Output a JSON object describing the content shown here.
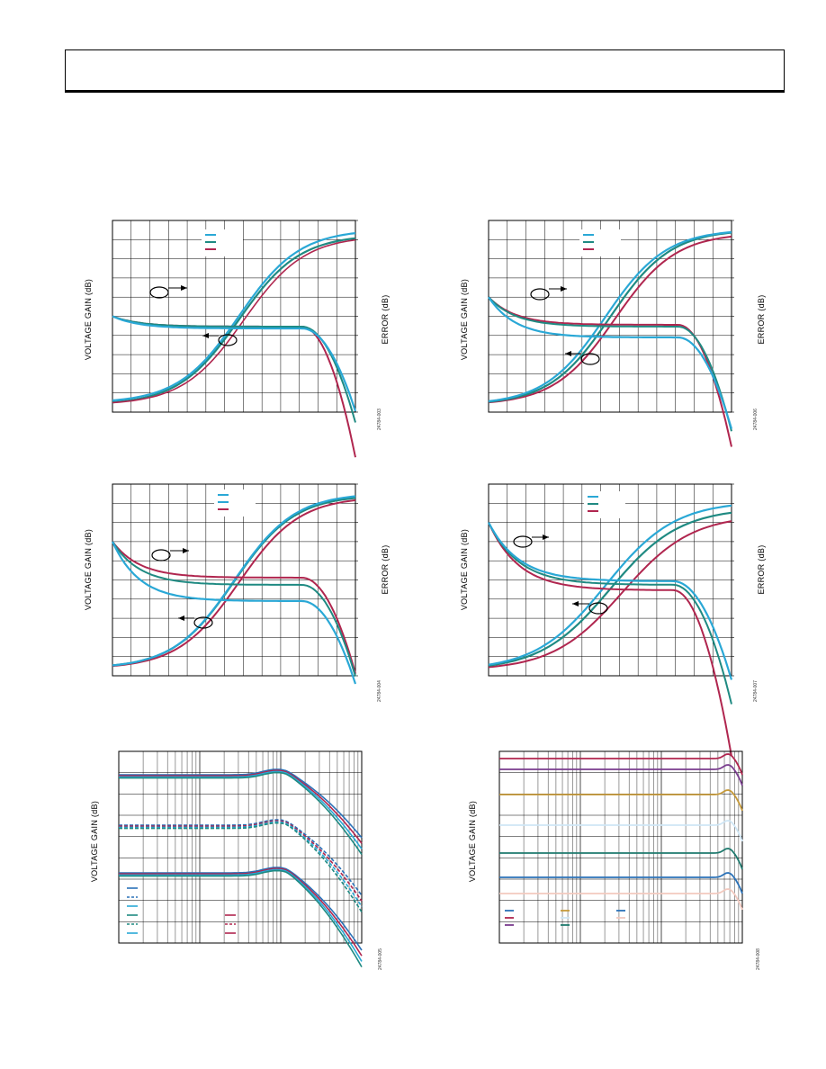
{
  "labels": {
    "voltage_gain": "VOLTAGE GAIN (dB)",
    "error": "ERROR (dB)"
  },
  "colors": {
    "cyan": "#2aa8d6",
    "teal": "#1f8a82",
    "crimson": "#b0264f",
    "blue": "#2b72b8",
    "purple": "#7a3d8f",
    "gold": "#c69a3a",
    "pale_blue": "#cfe6f5",
    "dark_green": "#1f7a6e",
    "pink": "#f2c9bf"
  },
  "figures": [
    {
      "id": "24784-003",
      "chart_data": {
        "type": "line",
        "ylabel": "VOLTAGE GAIN (dB)",
        "y2label": "ERROR (dB)",
        "grid": true,
        "series_colors": [
          "#2aa8d6",
          "#1f8a82",
          "#b0264f"
        ],
        "gain_curves_shape": "rising S-curve from bottom-left to top-right",
        "error_curves_shape": "falling, plateau mid-range, roll-off at high end"
      }
    },
    {
      "id": "24784-006",
      "chart_data": {
        "type": "line",
        "ylabel": "VOLTAGE GAIN (dB)",
        "y2label": "ERROR (dB)",
        "grid": true,
        "series_colors": [
          "#2aa8d6",
          "#1f8a82",
          "#b0264f"
        ]
      }
    },
    {
      "id": "24784-004",
      "chart_data": {
        "type": "line",
        "ylabel": "VOLTAGE GAIN (dB)",
        "y2label": "ERROR (dB)",
        "grid": true,
        "series_colors": [
          "#2aa8d6",
          "#1f8a82",
          "#b0264f"
        ]
      }
    },
    {
      "id": "24784-007",
      "chart_data": {
        "type": "line",
        "ylabel": "VOLTAGE GAIN (dB)",
        "y2label": "ERROR (dB)",
        "grid": true,
        "series_colors": [
          "#2aa8d6",
          "#1f8a82",
          "#b0264f"
        ]
      }
    },
    {
      "id": "24784-005",
      "chart_data": {
        "type": "line",
        "ylabel": "VOLTAGE GAIN (dB)",
        "x_scale": "log",
        "grid": true,
        "series_colors": [
          "#2b72b8",
          "#2b72b8",
          "#2aa8d6",
          "#1f8a82",
          "#1f8a82",
          "#2aa8d6",
          "#b0264f",
          "#b0264f",
          "#b0264f"
        ],
        "series_styles": [
          "solid",
          "dashed",
          "solid",
          "solid",
          "dashed",
          "solid",
          "solid",
          "dashed",
          "solid"
        ]
      }
    },
    {
      "id": "24784-008",
      "chart_data": {
        "type": "line",
        "ylabel": "VOLTAGE GAIN (dB)",
        "x_scale": "log",
        "grid": true,
        "series_colors": [
          "#b0264f",
          "#7a3d8f",
          "#c69a3a",
          "#cfe6f5",
          "#1f7a6e",
          "#2b72b8",
          "#f2c9bf"
        ]
      }
    }
  ]
}
